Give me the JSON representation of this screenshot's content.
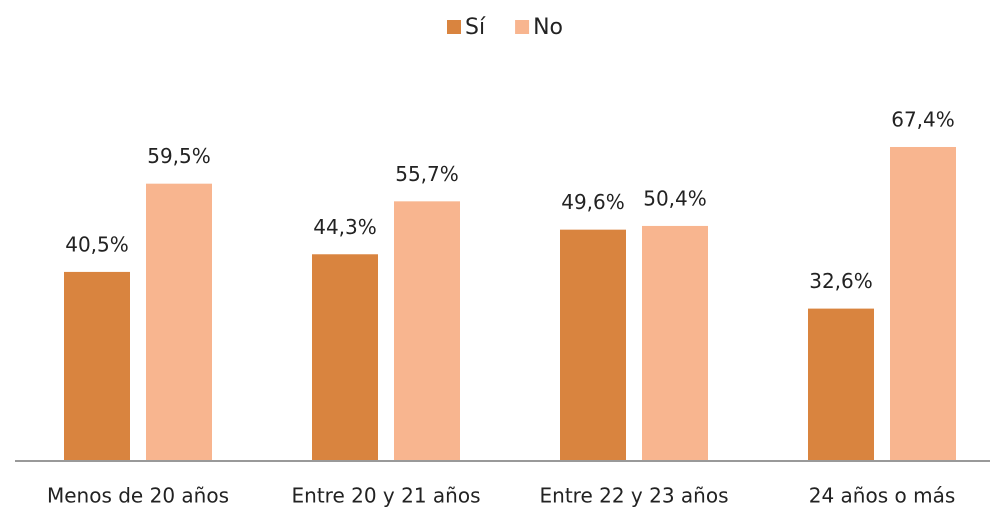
{
  "chart_data": {
    "type": "bar",
    "categories": [
      "Menos de 20 años",
      "Entre 20 y 21 años",
      "Entre 22 y 23 años",
      "24 años o más"
    ],
    "series": [
      {
        "name": "Sí",
        "color": "#d9843f",
        "values": [
          40.5,
          44.3,
          49.6,
          32.6
        ],
        "value_labels": [
          "40,5%",
          "44,3%",
          "49,6%",
          "32,6%"
        ]
      },
      {
        "name": "No",
        "color": "#f8b58f",
        "values": [
          59.5,
          55.7,
          50.4,
          67.4
        ],
        "value_labels": [
          "59,5%",
          "55,7%",
          "50,4%",
          "67,4%"
        ]
      }
    ],
    "legend": "top"
  }
}
